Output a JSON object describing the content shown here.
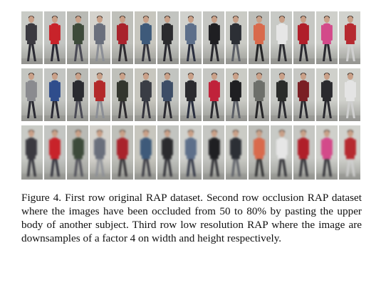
{
  "figure": {
    "caption": "Figure 4. First row original RAP dataset. Second row occlusion RAP dataset where the images have been occluded from 50 to 80% by pasting the upper body of another subject. Third row low resolution RAP where the image are downsamples of a factor 4 on width and height respectively."
  },
  "rows": [
    {
      "id": "original",
      "cells": [
        {
          "bg": "#c9cbc6",
          "top": "#3b3a40",
          "bottom": "#2b2b33",
          "head": "#3a2a24"
        },
        {
          "bg": "#c3c5c2",
          "top": "#c8232a",
          "bottom": "#2a2a35",
          "head": "#2c221e"
        },
        {
          "bg": "#b9bab5",
          "top": "#3d4a3a",
          "bottom": "#4b4b55",
          "head": "#2a211c"
        },
        {
          "bg": "#d4d2cc",
          "top": "#6a6f7c",
          "bottom": "#8c8f96",
          "head": "#2d241f"
        },
        {
          "bg": "#bfc0ba",
          "top": "#a9232c",
          "bottom": "#2e2c30",
          "head": "#2a211b"
        },
        {
          "bg": "#c7c6be",
          "top": "#3e5a7a",
          "bottom": "#34343d",
          "head": "#2b221d"
        },
        {
          "bg": "#c2c4c0",
          "top": "#2b2b2e",
          "bottom": "#2a2a31",
          "head": "#1f1a17"
        },
        {
          "bg": "#d0d1cd",
          "top": "#5d6f8a",
          "bottom": "#2b3040",
          "head": "#2b221c"
        },
        {
          "bg": "#c5c6c2",
          "top": "#1f1f22",
          "bottom": "#2a2a2f",
          "head": "#1d1816"
        },
        {
          "bg": "#cacbc5",
          "top": "#2c2f35",
          "bottom": "#5b5e66",
          "head": "#2a221e"
        },
        {
          "bg": "#bdbeb9",
          "top": "#d96a4c",
          "bottom": "#262628",
          "head": "#2a201c"
        },
        {
          "bg": "#c8cac6",
          "top": "#e6e6e6",
          "bottom": "#2c2c31",
          "head": "#2b221e"
        },
        {
          "bg": "#c6c7c3",
          "top": "#b01f2a",
          "bottom": "#2a2a30",
          "head": "#221b18"
        },
        {
          "bg": "#cfd0cb",
          "top": "#d34a8a",
          "bottom": "#2a2a30",
          "head": "#231c18"
        },
        {
          "bg": "#d1d2cd",
          "top": "#b62a30",
          "bottom": "#cfcfcf",
          "head": "#2a221d"
        }
      ]
    },
    {
      "id": "occlusion",
      "cells": [
        {
          "bg": "#c4c6c1",
          "top": "#8a8b8f",
          "bottom": "#2b2b33",
          "head": "#2a211c"
        },
        {
          "bg": "#c3c5c2",
          "top": "#2f4d8c",
          "bottom": "#2a2a35",
          "head": "#2a211c"
        },
        {
          "bg": "#b9bab5",
          "top": "#2a2b30",
          "bottom": "#4b4b55",
          "head": "#221b18"
        },
        {
          "bg": "#d0cec8",
          "top": "#b32a2a",
          "bottom": "#8c8f96",
          "head": "#2a211b"
        },
        {
          "bg": "#bfc0ba",
          "top": "#33362e",
          "bottom": "#2e2c30",
          "head": "#2a211b"
        },
        {
          "bg": "#c7c6be",
          "top": "#3a3d45",
          "bottom": "#34343d",
          "head": "#2b221d"
        },
        {
          "bg": "#c2c4c0",
          "top": "#3d4d66",
          "bottom": "#2a2a31",
          "head": "#1f1a17"
        },
        {
          "bg": "#d0d1cd",
          "top": "#2b2b2f",
          "bottom": "#2b3040",
          "head": "#2b221c"
        },
        {
          "bg": "#c5c6c2",
          "top": "#c0223a",
          "bottom": "#2a2a2f",
          "head": "#1d1816"
        },
        {
          "bg": "#cacbc5",
          "top": "#1f1f22",
          "bottom": "#5b5e66",
          "head": "#2a221e"
        },
        {
          "bg": "#bdbeb9",
          "top": "#6d6f6a",
          "bottom": "#262628",
          "head": "#2a201c"
        },
        {
          "bg": "#c8cac6",
          "top": "#2a2c2a",
          "bottom": "#2c2c31",
          "head": "#2b221e"
        },
        {
          "bg": "#c6c7c3",
          "top": "#7a1f24",
          "bottom": "#2a2a30",
          "head": "#221b18"
        },
        {
          "bg": "#cfd0cb",
          "top": "#2a2a2e",
          "bottom": "#2a2a30",
          "head": "#231c18"
        },
        {
          "bg": "#d1d2cd",
          "top": "#e4e4e4",
          "bottom": "#cfcfcf",
          "head": "#2a221d"
        }
      ]
    },
    {
      "id": "low-resolution",
      "cells": [
        {
          "bg": "#c9cbc6",
          "top": "#3b3a40",
          "bottom": "#2b2b33",
          "head": "#3a2a24"
        },
        {
          "bg": "#c3c5c2",
          "top": "#c8232a",
          "bottom": "#2a2a35",
          "head": "#2c221e"
        },
        {
          "bg": "#b9bab5",
          "top": "#3d4a3a",
          "bottom": "#4b4b55",
          "head": "#2a211c"
        },
        {
          "bg": "#d4d2cc",
          "top": "#6a6f7c",
          "bottom": "#8c8f96",
          "head": "#2d241f"
        },
        {
          "bg": "#bfc0ba",
          "top": "#a9232c",
          "bottom": "#2e2c30",
          "head": "#2a211b"
        },
        {
          "bg": "#c7c6be",
          "top": "#3e5a7a",
          "bottom": "#34343d",
          "head": "#2b221d"
        },
        {
          "bg": "#c2c4c0",
          "top": "#2b2b2e",
          "bottom": "#2a2a31",
          "head": "#1f1a17"
        },
        {
          "bg": "#d0d1cd",
          "top": "#5d6f8a",
          "bottom": "#2b3040",
          "head": "#2b221c"
        },
        {
          "bg": "#c5c6c2",
          "top": "#1f1f22",
          "bottom": "#2a2a2f",
          "head": "#1d1816"
        },
        {
          "bg": "#cacbc5",
          "top": "#2c2f35",
          "bottom": "#5b5e66",
          "head": "#2a221e"
        },
        {
          "bg": "#bdbeb9",
          "top": "#d96a4c",
          "bottom": "#262628",
          "head": "#2a201c"
        },
        {
          "bg": "#c8cac6",
          "top": "#e6e6e6",
          "bottom": "#2c2c31",
          "head": "#2b221e"
        },
        {
          "bg": "#c6c7c3",
          "top": "#b01f2a",
          "bottom": "#2a2a30",
          "head": "#221b18"
        },
        {
          "bg": "#cfd0cb",
          "top": "#d34a8a",
          "bottom": "#2a2a30",
          "head": "#231c18"
        },
        {
          "bg": "#d1d2cd",
          "top": "#b62a30",
          "bottom": "#cfcfcf",
          "head": "#2a221d"
        }
      ]
    }
  ]
}
